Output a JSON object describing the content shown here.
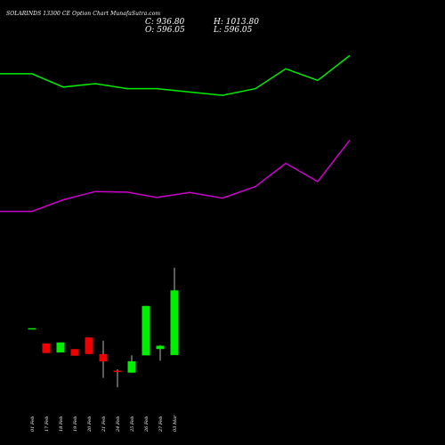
{
  "header": {
    "title": "SOLARINDS 13300  CE Option  Chart MunafaSutra.com",
    "close": "C: 936.80",
    "high": "H: 1013.80",
    "open": "O: 596.05",
    "low": "L: 596.05"
  },
  "colors": {
    "background": "#000000",
    "upper_band": "#00ee00",
    "lower_band": "#cc00cc",
    "up_candle": "#00ee00",
    "down_candle": "#ee0000",
    "neutral_candle": "#e8e8e8",
    "text": "#ffffff"
  },
  "chart_data": {
    "type": "candlestick",
    "categories": [
      "01 Feb",
      "17 Feb",
      "18 Feb",
      "19 Feb",
      "20 Feb",
      "21 Feb",
      "24 Feb",
      "25 Feb",
      "26 Feb",
      "27 Feb",
      "03 Mar"
    ],
    "candles": [
      {
        "open": 418,
        "high": 418,
        "low": 418,
        "close": 418,
        "color": "up"
      },
      {
        "open": 372,
        "high": 372,
        "low": 343,
        "close": 343,
        "color": "down"
      },
      {
        "open": 345,
        "high": 375,
        "low": 345,
        "close": 375,
        "color": "up"
      },
      {
        "open": 355,
        "high": 355,
        "low": 335,
        "close": 335,
        "color": "down"
      },
      {
        "open": 390,
        "high": 390,
        "low": 340,
        "close": 340,
        "color": "down"
      },
      {
        "open": 340,
        "high": 380,
        "low": 268,
        "close": 318,
        "color": "down"
      },
      {
        "open": 290,
        "high": 294,
        "low": 240,
        "close": 287,
        "color": "down"
      },
      {
        "open": 284,
        "high": 336,
        "low": 284,
        "close": 318,
        "color": "up"
      },
      {
        "open": 336,
        "high": 485,
        "low": 336,
        "close": 485,
        "color": "up"
      },
      {
        "open": 355,
        "high": 367,
        "low": 320,
        "close": 365,
        "color": "up"
      },
      {
        "open": 337,
        "high": 600,
        "low": 337,
        "close": 532,
        "color": "up"
      }
    ],
    "upper_band": [
      1185,
      1185,
      1145,
      1155,
      1140,
      1140,
      1130,
      1120,
      1140,
      1200,
      1165,
      1240
    ],
    "lower_band": [
      770,
      770,
      805,
      830,
      828,
      812,
      827,
      810,
      845,
      915,
      860,
      985
    ],
    "ylim": [
      200,
      1300
    ]
  }
}
